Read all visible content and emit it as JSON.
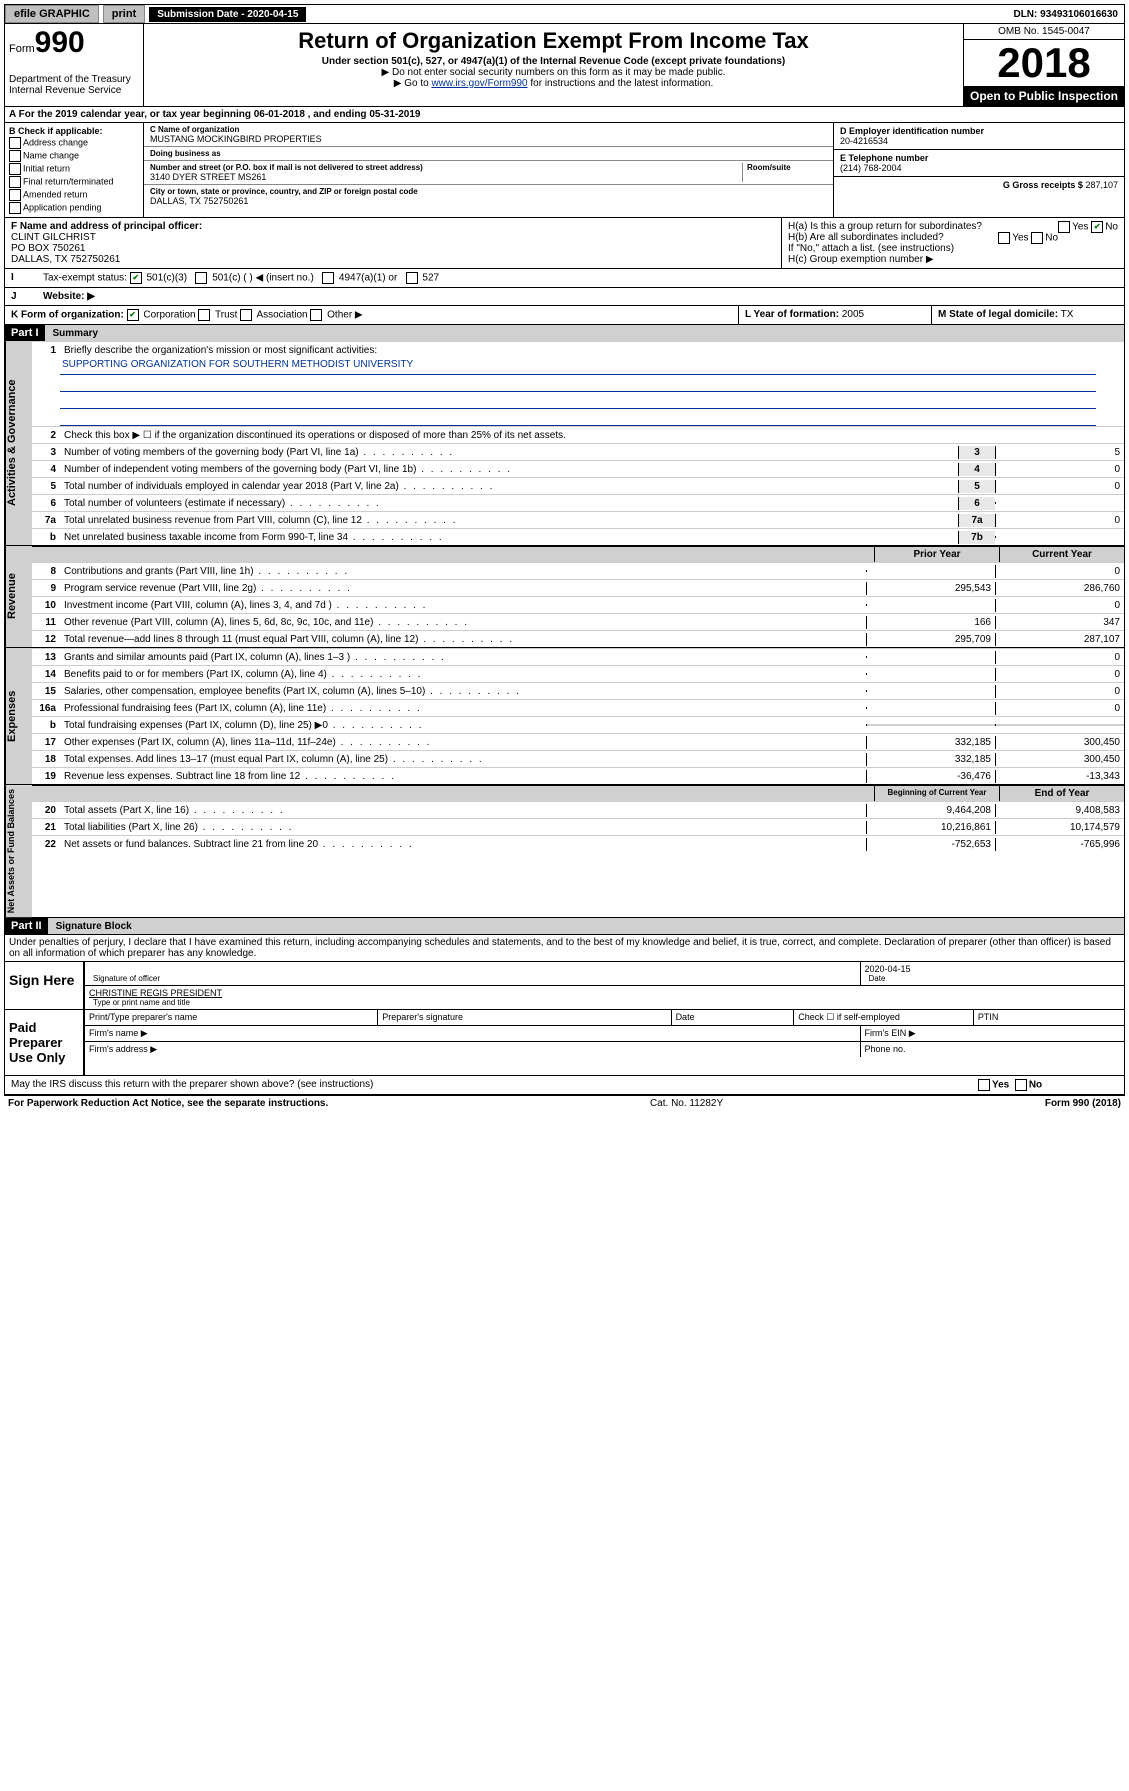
{
  "topbar": {
    "efile": "efile GRAPHIC",
    "print": "print",
    "subdate_label": "Submission Date - 2020-04-15",
    "dln": "DLN: 93493106016630"
  },
  "header": {
    "form_prefix": "Form",
    "form_no": "990",
    "dept": "Department of the Treasury\nInternal Revenue Service",
    "title": "Return of Organization Exempt From Income Tax",
    "sub": "Under section 501(c), 527, or 4947(a)(1) of the Internal Revenue Code (except private foundations)",
    "note1": "▶ Do not enter social security numbers on this form as it may be made public.",
    "note2_pre": "▶ Go to ",
    "note2_link": "www.irs.gov/Form990",
    "note2_post": " for instructions and the latest information.",
    "omb": "OMB No. 1545-0047",
    "year": "2018",
    "open": "Open to Public Inspection"
  },
  "rowA": "A For the 2019 calendar year, or tax year beginning 06-01-2018   , and ending 05-31-2019",
  "secB": {
    "label": "B Check if applicable:",
    "items": [
      "Address change",
      "Name change",
      "Initial return",
      "Final return/terminated",
      "Amended return",
      "Application pending"
    ]
  },
  "secC": {
    "name_label": "C Name of organization",
    "name": "MUSTANG MOCKINGBIRD PROPERTIES",
    "dba_label": "Doing business as",
    "dba": "",
    "addr_label": "Number and street (or P.O. box if mail is not delivered to street address)",
    "room_label": "Room/suite",
    "addr": "3140 DYER STREET MS261",
    "city_label": "City or town, state or province, country, and ZIP or foreign postal code",
    "city": "DALLAS, TX  752750261"
  },
  "secD": {
    "label": "D Employer identification number",
    "value": "20-4216534"
  },
  "secE": {
    "label": "E Telephone number",
    "value": "(214) 768-2004"
  },
  "secG": {
    "label": "G Gross receipts $",
    "value": "287,107"
  },
  "secF": {
    "label": "F  Name and address of principal officer:",
    "name": "CLINT GILCHRIST",
    "addr1": "PO BOX 750261",
    "addr2": "DALLAS, TX  752750261"
  },
  "secH": {
    "a": "H(a)  Is this a group return for subordinates?",
    "b": "H(b)  Are all subordinates included?",
    "bnote": "If \"No,\" attach a list. (see instructions)",
    "c": "H(c)  Group exemption number ▶",
    "yes": "Yes",
    "no": "No"
  },
  "secI": {
    "label": "Tax-exempt status:",
    "opts": [
      "501(c)(3)",
      "501(c) (  ) ◀ (insert no.)",
      "4947(a)(1) or",
      "527"
    ]
  },
  "secJ": {
    "label": "Website: ▶"
  },
  "secK": {
    "label": "K Form of organization:",
    "opts": [
      "Corporation",
      "Trust",
      "Association",
      "Other ▶"
    ]
  },
  "secL": {
    "label": "L Year of formation:",
    "value": "2005"
  },
  "secM": {
    "label": "M State of legal domicile:",
    "value": "TX"
  },
  "part1": {
    "tag": "Part I",
    "title": "Summary"
  },
  "summary": {
    "q1": "Briefly describe the organization's mission or most significant activities:",
    "mission": "SUPPORTING ORGANIZATION FOR SOUTHERN METHODIST UNIVERSITY",
    "q2": "Check this box ▶ ☐  if the organization discontinued its operations or disposed of more than 25% of its net assets.",
    "lines_gov": [
      {
        "n": "3",
        "d": "Number of voting members of the governing body (Part VI, line 1a)",
        "box": "3",
        "v": "5"
      },
      {
        "n": "4",
        "d": "Number of independent voting members of the governing body (Part VI, line 1b)",
        "box": "4",
        "v": "0"
      },
      {
        "n": "5",
        "d": "Total number of individuals employed in calendar year 2018 (Part V, line 2a)",
        "box": "5",
        "v": "0"
      },
      {
        "n": "6",
        "d": "Total number of volunteers (estimate if necessary)",
        "box": "6",
        "v": ""
      },
      {
        "n": "7a",
        "d": "Total unrelated business revenue from Part VIII, column (C), line 12",
        "box": "7a",
        "v": "0"
      },
      {
        "n": "b",
        "d": "Net unrelated business taxable income from Form 990-T, line 34",
        "box": "7b",
        "v": ""
      }
    ],
    "hdr_prior": "Prior Year",
    "hdr_curr": "Current Year",
    "lines_rev": [
      {
        "n": "8",
        "d": "Contributions and grants (Part VIII, line 1h)",
        "p": "",
        "c": "0"
      },
      {
        "n": "9",
        "d": "Program service revenue (Part VIII, line 2g)",
        "p": "295,543",
        "c": "286,760"
      },
      {
        "n": "10",
        "d": "Investment income (Part VIII, column (A), lines 3, 4, and 7d )",
        "p": "",
        "c": "0"
      },
      {
        "n": "11",
        "d": "Other revenue (Part VIII, column (A), lines 5, 6d, 8c, 9c, 10c, and 11e)",
        "p": "166",
        "c": "347"
      },
      {
        "n": "12",
        "d": "Total revenue—add lines 8 through 11 (must equal Part VIII, column (A), line 12)",
        "p": "295,709",
        "c": "287,107"
      }
    ],
    "lines_exp": [
      {
        "n": "13",
        "d": "Grants and similar amounts paid (Part IX, column (A), lines 1–3 )",
        "p": "",
        "c": "0"
      },
      {
        "n": "14",
        "d": "Benefits paid to or for members (Part IX, column (A), line 4)",
        "p": "",
        "c": "0"
      },
      {
        "n": "15",
        "d": "Salaries, other compensation, employee benefits (Part IX, column (A), lines 5–10)",
        "p": "",
        "c": "0"
      },
      {
        "n": "16a",
        "d": "Professional fundraising fees (Part IX, column (A), line 11e)",
        "p": "",
        "c": "0"
      },
      {
        "n": "b",
        "d": "Total fundraising expenses (Part IX, column (D), line 25) ▶0",
        "p": "—",
        "c": "—"
      },
      {
        "n": "17",
        "d": "Other expenses (Part IX, column (A), lines 11a–11d, 11f–24e)",
        "p": "332,185",
        "c": "300,450"
      },
      {
        "n": "18",
        "d": "Total expenses. Add lines 13–17 (must equal Part IX, column (A), line 25)",
        "p": "332,185",
        "c": "300,450"
      },
      {
        "n": "19",
        "d": "Revenue less expenses. Subtract line 18 from line 12",
        "p": "-36,476",
        "c": "-13,343"
      }
    ],
    "hdr_beg": "Beginning of Current Year",
    "hdr_end": "End of Year",
    "lines_net": [
      {
        "n": "20",
        "d": "Total assets (Part X, line 16)",
        "p": "9,464,208",
        "c": "9,408,583"
      },
      {
        "n": "21",
        "d": "Total liabilities (Part X, line 26)",
        "p": "10,216,861",
        "c": "10,174,579"
      },
      {
        "n": "22",
        "d": "Net assets or fund balances. Subtract line 21 from line 20",
        "p": "-752,653",
        "c": "-765,996"
      }
    ],
    "vlabels": {
      "gov": "Activities & Governance",
      "rev": "Revenue",
      "exp": "Expenses",
      "net": "Net Assets or Fund Balances"
    }
  },
  "part2": {
    "tag": "Part II",
    "title": "Signature Block"
  },
  "sig": {
    "perjury": "Under penalties of perjury, I declare that I have examined this return, including accompanying schedules and statements, and to the best of my knowledge and belief, it is true, correct, and complete. Declaration of preparer (other than officer) is based on all information of which preparer has any knowledge.",
    "sign_here": "Sign Here",
    "sig_officer": "Signature of officer",
    "date_val": "2020-04-15",
    "date": "Date",
    "name_title": "CHRISTINE REGIS  PRESIDENT",
    "type_name": "Type or print name and title",
    "paid": "Paid Preparer Use Only",
    "prep_name": "Print/Type preparer's name",
    "prep_sig": "Preparer's signature",
    "prep_date": "Date",
    "check_self": "Check ☐ if self-employed",
    "ptin": "PTIN",
    "firm_name": "Firm's name  ▶",
    "firm_ein": "Firm's EIN ▶",
    "firm_addr": "Firm's address ▶",
    "phone": "Phone no.",
    "discuss": "May the IRS discuss this return with the preparer shown above? (see instructions)"
  },
  "footer": {
    "left": "For Paperwork Reduction Act Notice, see the separate instructions.",
    "mid": "Cat. No. 11282Y",
    "right": "Form 990 (2018)"
  }
}
